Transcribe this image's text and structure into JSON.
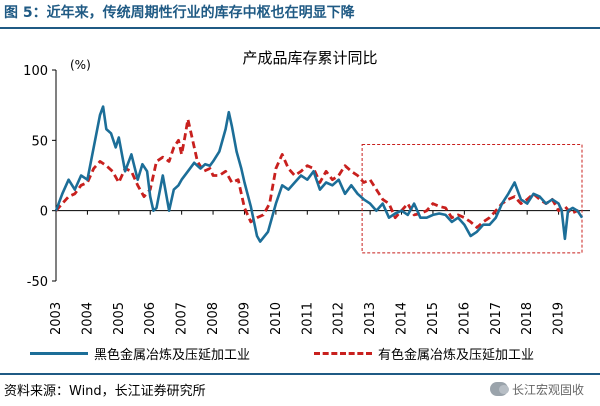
{
  "figure_title": "图 5：近年来，传统周期性行业的库存中枢也在明显下降",
  "source": "资料来源：Wind，长江证券研究所",
  "watermark": "长江宏观固收",
  "colors": {
    "title": "#1f5a84",
    "series_black": "#1c6e98",
    "series_nonferrous": "#c8201e",
    "highlight_box": "#c8201e"
  },
  "chart_data": {
    "type": "line",
    "title": "产成品库存累计同比",
    "ylabel": "(%)",
    "ylim": [
      -50,
      100
    ],
    "yticks": [
      -50,
      0,
      50,
      100
    ],
    "xlim": [
      2003,
      2020
    ],
    "xticks": [
      "2003",
      "2004",
      "2005",
      "2006",
      "2007",
      "2008",
      "2009",
      "2010",
      "2011",
      "2012",
      "2013",
      "2014",
      "2015",
      "2016",
      "2017",
      "2018",
      "2019"
    ],
    "grid": false,
    "legend_position": "bottom",
    "highlight_box": {
      "x_range": [
        2013,
        2020
      ],
      "y_range": [
        -30,
        47
      ]
    },
    "series": [
      {
        "name": "黑色金属冶炼及压延加工业",
        "style": "solid",
        "x": [
          2003.0,
          2003.2,
          2003.4,
          2003.6,
          2003.8,
          2004.0,
          2004.2,
          2004.4,
          2004.5,
          2004.6,
          2004.75,
          2004.9,
          2005.0,
          2005.2,
          2005.4,
          2005.6,
          2005.75,
          2005.9,
          2006.0,
          2006.1,
          2006.2,
          2006.4,
          2006.6,
          2006.75,
          2006.9,
          2007.0,
          2007.2,
          2007.4,
          2007.6,
          2007.75,
          2007.9,
          2008.0,
          2008.2,
          2008.4,
          2008.5,
          2008.6,
          2008.75,
          2008.9,
          2009.0,
          2009.2,
          2009.4,
          2009.5,
          2009.75,
          2010.0,
          2010.2,
          2010.4,
          2010.6,
          2010.8,
          2011.0,
          2011.2,
          2011.4,
          2011.6,
          2011.8,
          2012.0,
          2012.2,
          2012.4,
          2012.6,
          2012.8,
          2013.0,
          2013.2,
          2013.4,
          2013.6,
          2013.8,
          2014.0,
          2014.2,
          2014.4,
          2014.6,
          2014.8,
          2015.0,
          2015.2,
          2015.4,
          2015.6,
          2015.8,
          2016.0,
          2016.2,
          2016.4,
          2016.6,
          2016.8,
          2017.0,
          2017.2,
          2017.4,
          2017.6,
          2017.8,
          2018.0,
          2018.2,
          2018.4,
          2018.6,
          2018.8,
          2019.0,
          2019.1,
          2019.2,
          2019.3,
          2019.45,
          2019.6,
          2019.75
        ],
        "y": [
          0,
          12,
          22,
          15,
          25,
          22,
          45,
          68,
          74,
          58,
          55,
          45,
          52,
          28,
          40,
          22,
          33,
          28,
          10,
          0,
          2,
          25,
          0,
          15,
          18,
          22,
          28,
          34,
          30,
          33,
          32,
          35,
          42,
          58,
          70,
          60,
          42,
          30,
          20,
          3,
          -18,
          -22,
          -15,
          5,
          18,
          15,
          20,
          25,
          22,
          28,
          15,
          20,
          18,
          22,
          12,
          18,
          12,
          8,
          5,
          0,
          5,
          -5,
          -2,
          0,
          -3,
          5,
          -5,
          -5,
          -3,
          -2,
          -3,
          -8,
          -5,
          -10,
          -18,
          -15,
          -10,
          -10,
          -5,
          5,
          12,
          20,
          8,
          5,
          12,
          10,
          5,
          8,
          5,
          0,
          -20,
          0,
          2,
          0,
          -5
        ]
      },
      {
        "name": "有色金属冶炼及压延加工业",
        "style": "dashed",
        "x": [
          2003.0,
          2003.2,
          2003.4,
          2003.6,
          2003.8,
          2004.0,
          2004.2,
          2004.4,
          2004.6,
          2004.8,
          2005.0,
          2005.2,
          2005.4,
          2005.6,
          2005.8,
          2006.0,
          2006.2,
          2006.4,
          2006.6,
          2006.75,
          2006.9,
          2007.0,
          2007.1,
          2007.2,
          2007.3,
          2007.5,
          2007.7,
          2007.9,
          2008.0,
          2008.2,
          2008.4,
          2008.6,
          2008.8,
          2009.0,
          2009.2,
          2009.4,
          2009.6,
          2009.8,
          2010.0,
          2010.2,
          2010.4,
          2010.6,
          2010.8,
          2011.0,
          2011.2,
          2011.4,
          2011.6,
          2011.8,
          2012.0,
          2012.2,
          2012.4,
          2012.6,
          2012.8,
          2013.0,
          2013.2,
          2013.4,
          2013.6,
          2013.8,
          2014.0,
          2014.2,
          2014.4,
          2014.6,
          2014.8,
          2015.0,
          2015.2,
          2015.4,
          2015.6,
          2015.8,
          2016.0,
          2016.2,
          2016.4,
          2016.6,
          2016.8,
          2017.0,
          2017.2,
          2017.4,
          2017.6,
          2017.8,
          2018.0,
          2018.2,
          2018.4,
          2018.6,
          2018.8,
          2019.0,
          2019.2,
          2019.4,
          2019.6,
          2019.75
        ],
        "y": [
          0,
          5,
          10,
          12,
          18,
          20,
          30,
          35,
          32,
          28,
          20,
          30,
          28,
          18,
          10,
          15,
          35,
          38,
          35,
          45,
          50,
          40,
          52,
          65,
          55,
          35,
          28,
          30,
          25,
          25,
          28,
          20,
          22,
          2,
          -8,
          -5,
          -3,
          5,
          30,
          40,
          30,
          25,
          28,
          32,
          30,
          20,
          28,
          22,
          25,
          32,
          28,
          25,
          20,
          22,
          15,
          8,
          5,
          -5,
          0,
          5,
          -3,
          -2,
          0,
          5,
          3,
          2,
          -5,
          -3,
          -5,
          -8,
          -12,
          -8,
          -5,
          0,
          5,
          8,
          10,
          5,
          8,
          12,
          8,
          5,
          8,
          0,
          3,
          -2,
          0,
          -3
        ]
      }
    ]
  }
}
